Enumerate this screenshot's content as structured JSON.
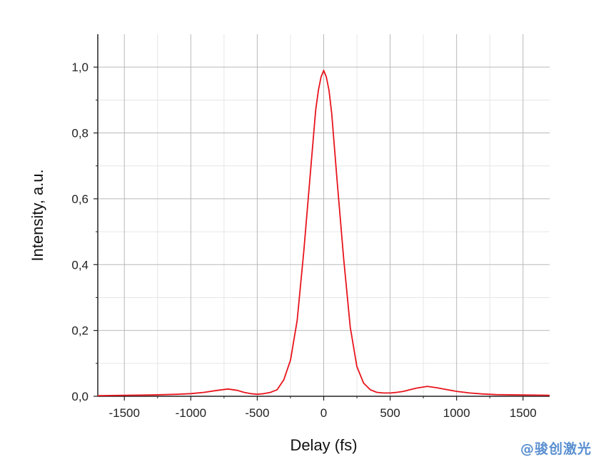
{
  "chart_data": {
    "type": "line",
    "title": "",
    "xlabel": "Delay (fs)",
    "ylabel": "Intensity, a.u.",
    "xlim": [
      -1700,
      1700
    ],
    "ylim": [
      0,
      1.1
    ],
    "x_ticks": [
      -1500,
      -1000,
      -500,
      0,
      500,
      1000,
      1500
    ],
    "x_tick_labels": [
      "-1500",
      "-1000",
      "-500",
      "0",
      "500",
      "1000",
      "1500"
    ],
    "y_ticks": [
      0,
      0.2,
      0.4,
      0.6,
      0.8,
      1.0
    ],
    "y_tick_labels": [
      "0,0",
      "0,2",
      "0,4",
      "0,6",
      "0,8",
      "1,0"
    ],
    "grid": true,
    "series": [
      {
        "color": "#e8141c",
        "x": [
          -1700,
          -1500,
          -1300,
          -1100,
          -1000,
          -900,
          -800,
          -720,
          -650,
          -600,
          -550,
          -500,
          -450,
          -400,
          -350,
          -300,
          -250,
          -200,
          -150,
          -100,
          -60,
          -40,
          -20,
          0,
          20,
          40,
          60,
          100,
          150,
          200,
          250,
          300,
          350,
          400,
          450,
          500,
          550,
          600,
          650,
          700,
          780,
          850,
          900,
          1000,
          1100,
          1200,
          1300,
          1500,
          1700
        ],
        "y": [
          0.002,
          0.003,
          0.004,
          0.006,
          0.008,
          0.012,
          0.018,
          0.022,
          0.018,
          0.012,
          0.008,
          0.006,
          0.008,
          0.012,
          0.02,
          0.05,
          0.11,
          0.23,
          0.44,
          0.68,
          0.87,
          0.93,
          0.97,
          0.99,
          0.97,
          0.93,
          0.86,
          0.66,
          0.42,
          0.21,
          0.09,
          0.04,
          0.02,
          0.012,
          0.01,
          0.01,
          0.012,
          0.015,
          0.02,
          0.025,
          0.03,
          0.026,
          0.022,
          0.015,
          0.01,
          0.007,
          0.005,
          0.004,
          0.003
        ]
      }
    ]
  },
  "watermark": "@骏创激光"
}
